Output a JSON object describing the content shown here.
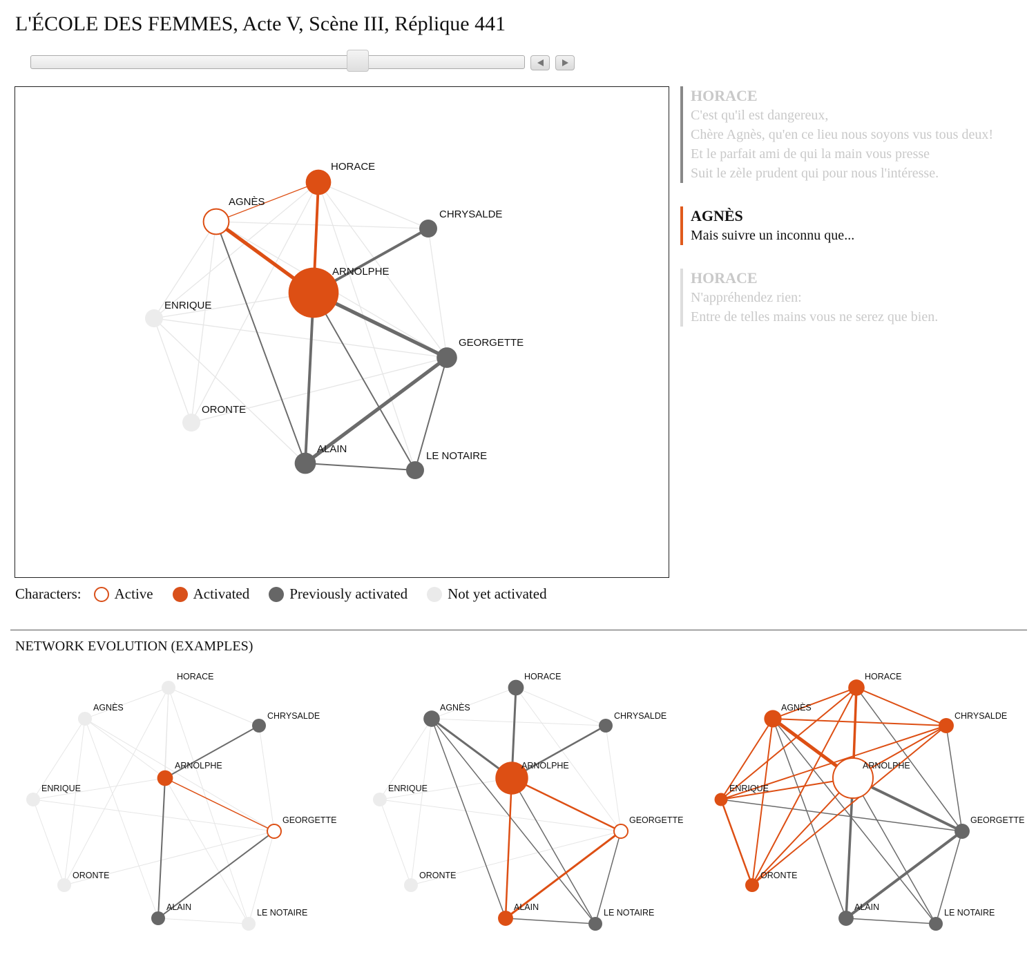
{
  "title": "L'ÉCOLE DES FEMMES, Acte V, Scène III, Réplique 441",
  "slider": {
    "position_fraction": 0.66
  },
  "colors": {
    "activated": "#dd4f14",
    "previous": "#676767",
    "notyet": "#ececec",
    "active_stroke": "#dd4f14"
  },
  "icons": {
    "prev": "triangle-left-icon",
    "next": "triangle-right-icon"
  },
  "transcript": [
    {
      "speaker": "HORACE",
      "lines": [
        "C'est qu'il est dangereux,",
        "Chère Agnès, qu'en ce lieu nous soyons vus tous deux!",
        "Et le parfait ami de qui la main vous presse",
        "Suit le zèle prudent qui pour nous l'intéresse."
      ]
    },
    {
      "speaker": "AGNÈS",
      "lines": [
        "Mais suivre un inconnu que..."
      ]
    },
    {
      "speaker": "HORACE",
      "lines": [
        "N'appréhendez rien:",
        "Entre de telles mains vous ne serez que bien."
      ]
    }
  ],
  "legend": {
    "label": "Characters:",
    "active": "Active",
    "activated": "Activated",
    "previous": "Previously activated",
    "notyet": "Not yet activated"
  },
  "evolution_title": "NETWORK EVOLUTION (EXAMPLES)",
  "characters": [
    "HORACE",
    "AGNÈS",
    "CHRYSALDE",
    "ARNOLPHE",
    "ENRIQUE",
    "GEORGETTE",
    "ORONTE",
    "ALAIN",
    "LE NOTAIRE"
  ],
  "main_graph": {
    "states": {
      "HORACE": "activated",
      "AGNÈS": "active",
      "CHRYSALDE": "previous",
      "ARNOLPHE": "activated",
      "ENRIQUE": "notyet",
      "GEORGETTE": "previous",
      "ORONTE": "notyet",
      "ALAIN": "previous",
      "LE NOTAIRE": "previous"
    },
    "sizes": {
      "HORACE": 2,
      "AGNÈS": 2,
      "CHRYSALDE": 1,
      "ARNOLPHE": 5,
      "ENRIQUE": 1,
      "GEORGETTE": 1.3,
      "ORONTE": 1,
      "ALAIN": 1.4,
      "LE NOTAIRE": 1
    },
    "edges": [
      [
        "AGNÈS",
        "HORACE",
        "activated",
        1
      ],
      [
        "HORACE",
        "ARNOLPHE",
        "activated",
        3
      ],
      [
        "AGNÈS",
        "ARNOLPHE",
        "activated",
        4
      ],
      [
        "CHRYSALDE",
        "ARNOLPHE",
        "previous",
        3
      ],
      [
        "ARNOLPHE",
        "GEORGETTE",
        "previous",
        4
      ],
      [
        "ARNOLPHE",
        "ALAIN",
        "previous",
        3
      ],
      [
        "ARNOLPHE",
        "LE NOTAIRE",
        "previous",
        1.5
      ],
      [
        "AGNÈS",
        "ALAIN",
        "previous",
        1.5
      ],
      [
        "GEORGETTE",
        "ALAIN",
        "previous",
        4
      ],
      [
        "GEORGETTE",
        "LE NOTAIRE",
        "previous",
        1.5
      ],
      [
        "ALAIN",
        "LE NOTAIRE",
        "previous",
        1.5
      ],
      [
        "HORACE",
        "CHRYSALDE",
        "notyet",
        1
      ],
      [
        "AGNÈS",
        "ENRIQUE",
        "notyet",
        1
      ],
      [
        "AGNÈS",
        "ORONTE",
        "notyet",
        1
      ],
      [
        "AGNÈS",
        "CHRYSALDE",
        "notyet",
        1
      ],
      [
        "AGNÈS",
        "GEORGETTE",
        "notyet",
        1
      ],
      [
        "ENRIQUE",
        "ORONTE",
        "notyet",
        1
      ],
      [
        "ENRIQUE",
        "ARNOLPHE",
        "notyet",
        1
      ],
      [
        "ENRIQUE",
        "GEORGETTE",
        "notyet",
        1
      ],
      [
        "ORONTE",
        "GEORGETTE",
        "notyet",
        1
      ],
      [
        "ORONTE",
        "HORACE",
        "notyet",
        1
      ],
      [
        "HORACE",
        "GEORGETTE",
        "notyet",
        1
      ],
      [
        "ENRIQUE",
        "HORACE",
        "notyet",
        1
      ],
      [
        "CHRYSALDE",
        "GEORGETTE",
        "notyet",
        1
      ],
      [
        "ENRIQUE",
        "ALAIN",
        "notyet",
        1
      ],
      [
        "HORACE",
        "LE NOTAIRE",
        "notyet",
        1
      ]
    ]
  },
  "evolution": [
    {
      "states": {
        "HORACE": "notyet",
        "AGNÈS": "notyet",
        "CHRYSALDE": "previous",
        "ARNOLPHE": "activated",
        "ENRIQUE": "notyet",
        "GEORGETTE": "active",
        "ORONTE": "notyet",
        "ALAIN": "previous",
        "LE NOTAIRE": "notyet"
      },
      "sizes": {
        "HORACE": 1,
        "AGNÈS": 1,
        "CHRYSALDE": 1,
        "ARNOLPHE": 1.3,
        "ENRIQUE": 1,
        "GEORGETTE": 1,
        "ORONTE": 1,
        "ALAIN": 1,
        "LE NOTAIRE": 1
      },
      "edges": [
        [
          "ARNOLPHE",
          "GEORGETTE",
          "activated",
          1.5
        ],
        [
          "ARNOLPHE",
          "CHRYSALDE",
          "previous",
          2
        ],
        [
          "ARNOLPHE",
          "ALAIN",
          "previous",
          2
        ],
        [
          "GEORGETTE",
          "ALAIN",
          "previous",
          2
        ],
        [
          "HORACE",
          "AGNÈS",
          "notyet",
          1
        ],
        [
          "HORACE",
          "CHRYSALDE",
          "notyet",
          1
        ],
        [
          "HORACE",
          "ARNOLPHE",
          "notyet",
          1
        ],
        [
          "HORACE",
          "ALAIN",
          "notyet",
          1
        ],
        [
          "HORACE",
          "ORONTE",
          "notyet",
          1
        ],
        [
          "HORACE",
          "LE NOTAIRE",
          "notyet",
          1
        ],
        [
          "AGNÈS",
          "ARNOLPHE",
          "notyet",
          1
        ],
        [
          "AGNÈS",
          "GEORGETTE",
          "notyet",
          1
        ],
        [
          "AGNÈS",
          "ALAIN",
          "notyet",
          1
        ],
        [
          "AGNÈS",
          "ORONTE",
          "notyet",
          1
        ],
        [
          "AGNÈS",
          "ENRIQUE",
          "notyet",
          1
        ],
        [
          "ENRIQUE",
          "GEORGETTE",
          "notyet",
          1
        ],
        [
          "ENRIQUE",
          "ORONTE",
          "notyet",
          1
        ],
        [
          "ENRIQUE",
          "ARNOLPHE",
          "notyet",
          1
        ],
        [
          "ORONTE",
          "GEORGETTE",
          "notyet",
          1
        ],
        [
          "CHRYSALDE",
          "GEORGETTE",
          "notyet",
          1
        ],
        [
          "GEORGETTE",
          "LE NOTAIRE",
          "notyet",
          1
        ],
        [
          "ARNOLPHE",
          "LE NOTAIRE",
          "notyet",
          1
        ],
        [
          "ALAIN",
          "LE NOTAIRE",
          "notyet",
          1
        ]
      ]
    },
    {
      "states": {
        "HORACE": "previous",
        "AGNÈS": "previous",
        "CHRYSALDE": "previous",
        "ARNOLPHE": "activated",
        "ENRIQUE": "notyet",
        "GEORGETTE": "active",
        "ORONTE": "notyet",
        "ALAIN": "activated",
        "LE NOTAIRE": "previous"
      },
      "sizes": {
        "HORACE": 1.3,
        "AGNÈS": 1.4,
        "CHRYSALDE": 1,
        "ARNOLPHE": 3.6,
        "ENRIQUE": 1,
        "GEORGETTE": 1,
        "ORONTE": 1,
        "ALAIN": 1.2,
        "LE NOTAIRE": 1
      },
      "edges": [
        [
          "ARNOLPHE",
          "GEORGETTE",
          "activated",
          2.5
        ],
        [
          "ARNOLPHE",
          "ALAIN",
          "activated",
          2.5
        ],
        [
          "GEORGETTE",
          "ALAIN",
          "activated",
          3
        ],
        [
          "HORACE",
          "ARNOLPHE",
          "previous",
          3
        ],
        [
          "AGNÈS",
          "ARNOLPHE",
          "previous",
          3
        ],
        [
          "AGNÈS",
          "ALAIN",
          "previous",
          1.5
        ],
        [
          "CHRYSALDE",
          "ARNOLPHE",
          "previous",
          2.5
        ],
        [
          "ARNOLPHE",
          "LE NOTAIRE",
          "previous",
          1.5
        ],
        [
          "GEORGETTE",
          "LE NOTAIRE",
          "previous",
          1.5
        ],
        [
          "ALAIN",
          "LE NOTAIRE",
          "previous",
          1.5
        ],
        [
          "AGNÈS",
          "LE NOTAIRE",
          "previous",
          1.5
        ],
        [
          "HORACE",
          "AGNÈS",
          "notyet",
          1
        ],
        [
          "HORACE",
          "CHRYSALDE",
          "notyet",
          1
        ],
        [
          "AGNÈS",
          "ENRIQUE",
          "notyet",
          1
        ],
        [
          "AGNÈS",
          "ORONTE",
          "notyet",
          1
        ],
        [
          "ENRIQUE",
          "ORONTE",
          "notyet",
          1
        ],
        [
          "ENRIQUE",
          "GEORGETTE",
          "notyet",
          1
        ],
        [
          "ENRIQUE",
          "ARNOLPHE",
          "notyet",
          1
        ],
        [
          "ORONTE",
          "GEORGETTE",
          "notyet",
          1
        ],
        [
          "HORACE",
          "GEORGETTE",
          "notyet",
          1
        ],
        [
          "CHRYSALDE",
          "GEORGETTE",
          "notyet",
          1
        ],
        [
          "AGNÈS",
          "CHRYSALDE",
          "notyet",
          1
        ]
      ]
    },
    {
      "states": {
        "HORACE": "activated",
        "AGNÈS": "activated",
        "CHRYSALDE": "activated",
        "ARNOLPHE": "active",
        "ENRIQUE": "activated",
        "GEORGETTE": "previous",
        "ORONTE": "activated",
        "ALAIN": "previous",
        "LE NOTAIRE": "previous"
      },
      "sizes": {
        "HORACE": 1.4,
        "AGNÈS": 1.6,
        "CHRYSALDE": 1.2,
        "ARNOLPHE": 5.4,
        "ENRIQUE": 0.9,
        "GEORGETTE": 1.2,
        "ORONTE": 1,
        "ALAIN": 1.2,
        "LE NOTAIRE": 1
      },
      "edges": [
        [
          "HORACE",
          "AGNÈS",
          "activated",
          2
        ],
        [
          "HORACE",
          "CHRYSALDE",
          "activated",
          2
        ],
        [
          "HORACE",
          "ARNOLPHE",
          "activated",
          3.5
        ],
        [
          "HORACE",
          "ENRIQUE",
          "activated",
          2
        ],
        [
          "HORACE",
          "ORONTE",
          "activated",
          2
        ],
        [
          "AGNÈS",
          "CHRYSALDE",
          "activated",
          2
        ],
        [
          "AGNÈS",
          "ARNOLPHE",
          "activated",
          5
        ],
        [
          "AGNÈS",
          "ENRIQUE",
          "activated",
          2
        ],
        [
          "AGNÈS",
          "ORONTE",
          "activated",
          2
        ],
        [
          "CHRYSALDE",
          "ARNOLPHE",
          "activated",
          2
        ],
        [
          "CHRYSALDE",
          "ENRIQUE",
          "activated",
          2
        ],
        [
          "CHRYSALDE",
          "ORONTE",
          "activated",
          2
        ],
        [
          "ENRIQUE",
          "ARNOLPHE",
          "activated",
          2
        ],
        [
          "ENRIQUE",
          "ORONTE",
          "activated",
          2.5
        ],
        [
          "ORONTE",
          "ARNOLPHE",
          "activated",
          2
        ],
        [
          "ARNOLPHE",
          "GEORGETTE",
          "previous",
          4
        ],
        [
          "ARNOLPHE",
          "ALAIN",
          "previous",
          3.5
        ],
        [
          "GEORGETTE",
          "ALAIN",
          "previous",
          4
        ],
        [
          "ARNOLPHE",
          "LE NOTAIRE",
          "previous",
          1.5
        ],
        [
          "GEORGETTE",
          "LE NOTAIRE",
          "previous",
          1.5
        ],
        [
          "ALAIN",
          "LE NOTAIRE",
          "previous",
          1.5
        ],
        [
          "AGNÈS",
          "ALAIN",
          "previous",
          1.5
        ],
        [
          "HORACE",
          "GEORGETTE",
          "previous",
          1.5
        ],
        [
          "CHRYSALDE",
          "GEORGETTE",
          "previous",
          1.5
        ],
        [
          "ENRIQUE",
          "GEORGETTE",
          "previous",
          1.5
        ],
        [
          "AGNÈS",
          "LE NOTAIRE",
          "previous",
          1.5
        ],
        [
          "HORACE",
          "ALAIN",
          "previous",
          1.5
        ]
      ]
    }
  ]
}
